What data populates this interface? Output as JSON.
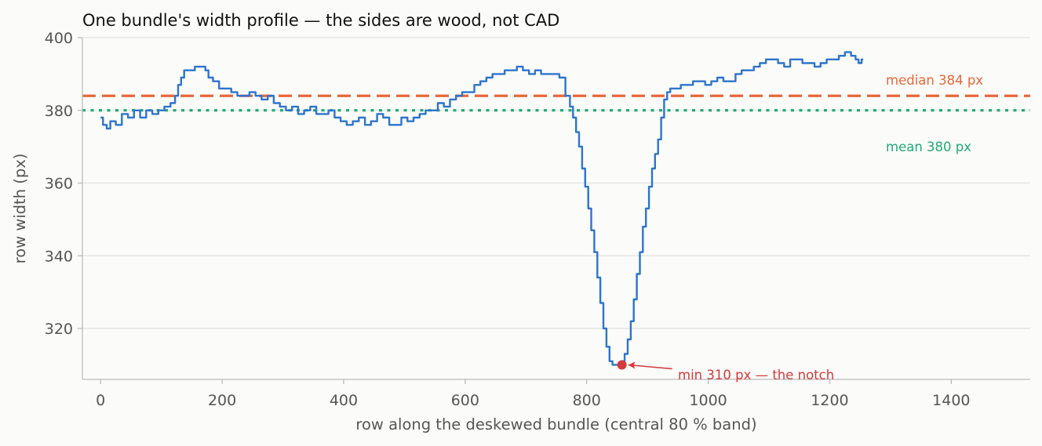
{
  "chart_data": {
    "type": "line",
    "title": "One bundle's width profile — the sides are wood, not CAD",
    "xlabel": "row along the deskewed bundle (central 80 % band)",
    "ylabel": "row width (px)",
    "xlim": [
      -30,
      1530
    ],
    "ylim": [
      306,
      400
    ],
    "x_ticks": [
      "0",
      "200",
      "400",
      "600",
      "800",
      "1000",
      "1200",
      "1400"
    ],
    "y_ticks": [
      "320",
      "340",
      "360",
      "380",
      "400"
    ],
    "grid": "horizontal",
    "series": [
      {
        "color": "#2d74cc",
        "x": [
          0,
          8,
          12,
          20,
          30,
          40,
          50,
          60,
          70,
          80,
          90,
          100,
          110,
          120,
          125,
          130,
          135,
          140,
          150,
          160,
          170,
          175,
          180,
          190,
          200,
          210,
          220,
          230,
          240,
          250,
          260,
          270,
          280,
          290,
          300,
          310,
          320,
          330,
          340,
          350,
          360,
          370,
          380,
          390,
          400,
          410,
          420,
          430,
          440,
          450,
          460,
          470,
          480,
          490,
          500,
          510,
          520,
          530,
          540,
          550,
          560,
          570,
          580,
          590,
          600,
          610,
          620,
          630,
          640,
          650,
          660,
          670,
          680,
          690,
          700,
          710,
          720,
          730,
          740,
          750,
          760,
          770,
          775,
          780,
          785,
          790,
          795,
          800,
          805,
          810,
          815,
          820,
          825,
          830,
          835,
          840,
          845,
          850,
          855,
          860,
          865,
          870,
          875,
          880,
          885,
          890,
          895,
          900,
          905,
          910,
          915,
          920,
          925,
          930,
          935,
          940,
          950,
          960,
          970,
          980,
          990,
          1000,
          1010,
          1020,
          1030,
          1040,
          1050,
          1060,
          1070,
          1080,
          1090,
          1100,
          1110,
          1120,
          1130,
          1140,
          1150,
          1160,
          1170,
          1180,
          1190,
          1200,
          1210,
          1220,
          1230,
          1240,
          1245,
          1250,
          1255
        ],
        "y": [
          378,
          376,
          375,
          377,
          376,
          379,
          378,
          380,
          378,
          380,
          379,
          380,
          381,
          382,
          384,
          387,
          389,
          391,
          391,
          392,
          392,
          391,
          389,
          388,
          386,
          386,
          385,
          384,
          384,
          385,
          384,
          383,
          384,
          382,
          381,
          380,
          381,
          379,
          380,
          381,
          379,
          379,
          380,
          378,
          377,
          376,
          377,
          378,
          376,
          377,
          379,
          378,
          376,
          376,
          378,
          377,
          378,
          379,
          380,
          380,
          382,
          381,
          383,
          384,
          385,
          385,
          387,
          388,
          389,
          390,
          390,
          391,
          391,
          392,
          391,
          390,
          391,
          390,
          390,
          390,
          389,
          384,
          381,
          378,
          374,
          370,
          364,
          359,
          353,
          347,
          341,
          334,
          327,
          320,
          315,
          311,
          310,
          310,
          310,
          311,
          313,
          317,
          322,
          328,
          335,
          341,
          348,
          353,
          359,
          364,
          368,
          372,
          378,
          383,
          385,
          386,
          386,
          387,
          387,
          388,
          388,
          387,
          388,
          389,
          388,
          388,
          390,
          391,
          391,
          392,
          393,
          394,
          394,
          393,
          392,
          394,
          394,
          393,
          393,
          392,
          393,
          394,
          394,
          395,
          396,
          395,
          394,
          393,
          394
        ]
      }
    ],
    "reference_lines": [
      {
        "name": "median",
        "value": 384,
        "style": "dashed",
        "color": "#e8673a"
      },
      {
        "name": "mean",
        "value": 380,
        "style": "dotted",
        "color": "#21a97a"
      }
    ],
    "annotations": {
      "median": "median 384 px",
      "mean": "mean 380 px",
      "min": "min 310 px — the notch",
      "min_point": {
        "x": 858,
        "y": 310,
        "color": "#d43a3a"
      }
    }
  }
}
